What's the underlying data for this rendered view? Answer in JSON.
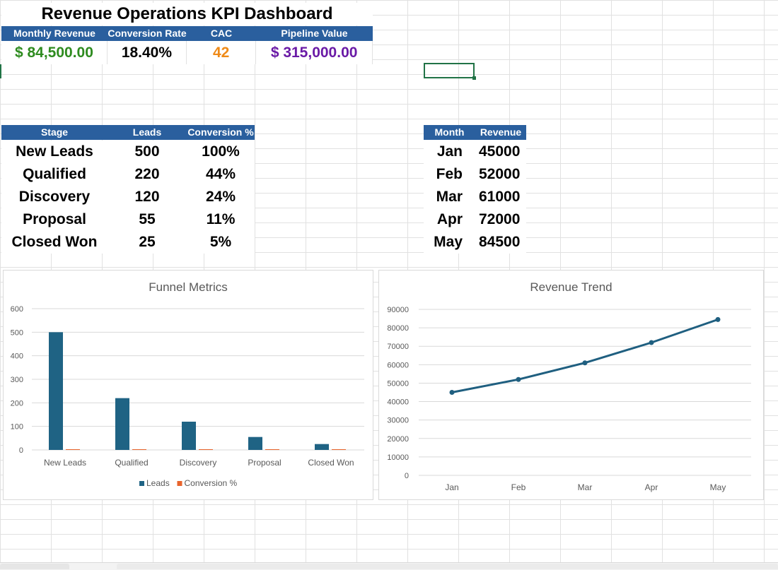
{
  "title": "Revenue Operations KPI Dashboard",
  "kpis": {
    "headers": [
      "Monthly Revenue",
      "Conversion Rate",
      "CAC",
      "Pipeline Value"
    ],
    "values": [
      "$  84,500.00",
      "18.40%",
      "42",
      "$  315,000.00"
    ],
    "colors": [
      "#2e8b1f",
      "#000000",
      "#ef8a17",
      "#6a1aa6"
    ]
  },
  "funnel_table": {
    "headers": [
      "Stage",
      "Leads",
      "Conversion %"
    ],
    "rows": [
      [
        "New Leads",
        "500",
        "100%"
      ],
      [
        "Qualified",
        "220",
        "44%"
      ],
      [
        "Discovery",
        "120",
        "24%"
      ],
      [
        "Proposal",
        "55",
        "11%"
      ],
      [
        "Closed Won",
        "25",
        "5%"
      ]
    ]
  },
  "revenue_table": {
    "headers": [
      "Month",
      "Revenue"
    ],
    "rows": [
      [
        "Jan",
        "45000"
      ],
      [
        "Feb",
        "52000"
      ],
      [
        "Mar",
        "61000"
      ],
      [
        "Apr",
        "72000"
      ],
      [
        "May",
        "84500"
      ]
    ]
  },
  "chart_data": [
    {
      "type": "bar",
      "title": "Funnel Metrics",
      "categories": [
        "New Leads",
        "Qualified",
        "Discovery",
        "Proposal",
        "Closed Won"
      ],
      "series": [
        {
          "name": "Leads",
          "values": [
            500,
            220,
            120,
            55,
            25
          ],
          "color": "#1f6384"
        },
        {
          "name": "Conversion %",
          "values": [
            1.0,
            0.44,
            0.24,
            0.11,
            0.05
          ],
          "color": "#e8642c"
        }
      ],
      "ylim": [
        0,
        600
      ],
      "yticks": [
        0,
        100,
        200,
        300,
        400,
        500,
        600
      ],
      "grid": true,
      "legend": "bottom"
    },
    {
      "type": "line",
      "title": "Revenue Trend",
      "categories": [
        "Jan",
        "Feb",
        "Mar",
        "Apr",
        "May"
      ],
      "series": [
        {
          "name": "Revenue",
          "values": [
            45000,
            52000,
            61000,
            72000,
            84500
          ],
          "color": "#1f5f80"
        }
      ],
      "ylim": [
        0,
        90000
      ],
      "yticks": [
        0,
        10000,
        20000,
        30000,
        40000,
        50000,
        60000,
        70000,
        80000,
        90000
      ],
      "grid": true,
      "legend": "none"
    }
  ]
}
